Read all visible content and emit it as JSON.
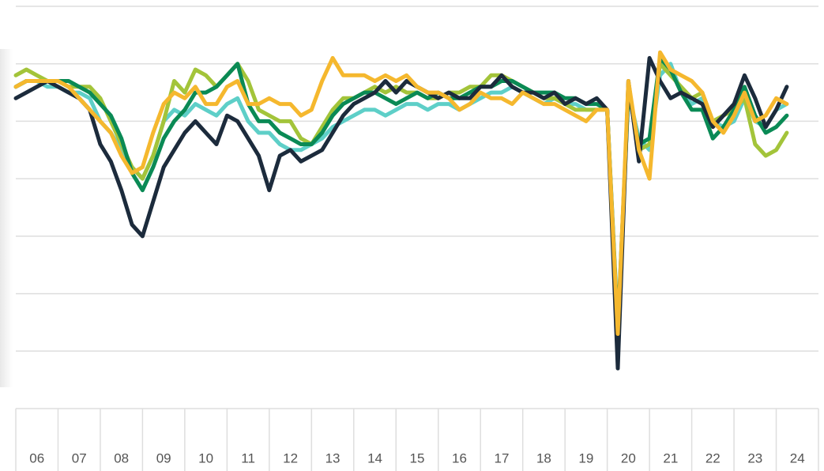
{
  "chart_data": {
    "type": "line",
    "categories": [
      "06",
      "07",
      "08",
      "09",
      "10",
      "11",
      "12",
      "13",
      "14",
      "15",
      "16",
      "17",
      "18",
      "19",
      "20",
      "21",
      "22",
      "23",
      "24"
    ],
    "xlim": [
      2006,
      2025
    ],
    "ylim": [
      0,
      70
    ],
    "yticks": [
      0,
      10,
      20,
      30,
      40,
      50,
      60,
      70
    ],
    "grid": true,
    "x": [
      2006,
      2006.25,
      2006.5,
      2006.75,
      2007,
      2007.25,
      2007.5,
      2007.75,
      2008,
      2008.25,
      2008.5,
      2008.75,
      2009,
      2009.25,
      2009.5,
      2009.75,
      2010,
      2010.25,
      2010.5,
      2010.75,
      2011,
      2011.25,
      2011.5,
      2011.75,
      2012,
      2012.25,
      2012.5,
      2012.75,
      2013,
      2013.25,
      2013.5,
      2013.75,
      2014,
      2014.25,
      2014.5,
      2014.75,
      2015,
      2015.25,
      2015.5,
      2015.75,
      2016,
      2016.25,
      2016.5,
      2016.75,
      2017,
      2017.25,
      2017.5,
      2017.75,
      2018,
      2018.25,
      2018.5,
      2018.75,
      2019,
      2019.25,
      2019.5,
      2019.75,
      2020,
      2020.25,
      2020.5,
      2020.75,
      2021,
      2021.25,
      2021.5,
      2021.75,
      2022,
      2022.25,
      2022.5,
      2022.75,
      2023,
      2023.25,
      2023.5,
      2023.75,
      2024,
      2024.25
    ],
    "series": [
      {
        "color": "#5ecfc8",
        "values": [
          56,
          57,
          57,
          56,
          56,
          55,
          55,
          54,
          50,
          48,
          45,
          42,
          40,
          44,
          50,
          52,
          51,
          53,
          52,
          51,
          53,
          54,
          50,
          48,
          48,
          46,
          45,
          45,
          46,
          47,
          49,
          50,
          51,
          52,
          52,
          51,
          52,
          53,
          53,
          52,
          53,
          53,
          52,
          53,
          54,
          55,
          55,
          56,
          55,
          54,
          53,
          54,
          53,
          53,
          52,
          52,
          52,
          12,
          55,
          47,
          45,
          58,
          60,
          55,
          53,
          54,
          50,
          49,
          50,
          54,
          50,
          49,
          52,
          53
        ]
      },
      {
        "color": "#a3c43a",
        "values": [
          58,
          59,
          58,
          57,
          57,
          56,
          56,
          56,
          54,
          50,
          46,
          42,
          40,
          44,
          50,
          57,
          55,
          59,
          58,
          56,
          58,
          60,
          57,
          52,
          51,
          50,
          50,
          47,
          46,
          49,
          52,
          54,
          54,
          55,
          56,
          55,
          56,
          55,
          55,
          54,
          54,
          55,
          55,
          56,
          56,
          58,
          58,
          57,
          56,
          55,
          54,
          54,
          53,
          52,
          52,
          52,
          52,
          13,
          56,
          45,
          46,
          60,
          58,
          56,
          54,
          55,
          50,
          51,
          52,
          54,
          46,
          44,
          45,
          48
        ]
      },
      {
        "color": "#0a8a55",
        "values": [
          56,
          57,
          57,
          57,
          57,
          57,
          56,
          55,
          53,
          51,
          47,
          41,
          38,
          42,
          47,
          50,
          52,
          55,
          55,
          56,
          58,
          60,
          53,
          50,
          50,
          48,
          47,
          46,
          46,
          48,
          51,
          53,
          54,
          55,
          55,
          54,
          53,
          54,
          55,
          54,
          55,
          54,
          54,
          55,
          56,
          56,
          57,
          57,
          56,
          55,
          55,
          55,
          54,
          54,
          53,
          53,
          52,
          14,
          55,
          46,
          47,
          61,
          59,
          55,
          52,
          52,
          47,
          49,
          52,
          56,
          51,
          48,
          49,
          51
        ]
      },
      {
        "color": "#1c2b3c",
        "values": [
          54,
          55,
          56,
          57,
          56,
          55,
          54,
          52,
          46,
          43,
          38,
          32,
          30,
          36,
          42,
          45,
          48,
          50,
          48,
          46,
          51,
          50,
          47,
          44,
          38,
          44,
          45,
          43,
          44,
          45,
          48,
          51,
          53,
          54,
          55,
          57,
          55,
          57,
          56,
          55,
          54,
          55,
          54,
          54,
          56,
          56,
          58,
          56,
          55,
          55,
          54,
          55,
          53,
          54,
          53,
          54,
          52,
          7,
          57,
          43,
          61,
          57,
          54,
          55,
          54,
          53,
          49,
          51,
          53,
          58,
          54,
          49,
          52,
          56
        ]
      },
      {
        "color": "#f5b82e",
        "values": [
          56,
          57,
          57,
          57,
          57,
          56,
          54,
          52,
          50,
          48,
          44,
          41,
          42,
          48,
          53,
          55,
          54,
          56,
          53,
          53,
          56,
          57,
          53,
          53,
          54,
          53,
          53,
          51,
          52,
          57,
          61,
          58,
          58,
          58,
          57,
          58,
          57,
          58,
          56,
          55,
          55,
          54,
          52,
          53,
          55,
          54,
          54,
          53,
          55,
          54,
          53,
          53,
          52,
          51,
          50,
          52,
          52,
          13,
          57,
          45,
          40,
          62,
          59,
          58,
          57,
          55,
          50,
          48,
          51,
          55,
          50,
          51,
          54,
          53
        ]
      }
    ]
  }
}
